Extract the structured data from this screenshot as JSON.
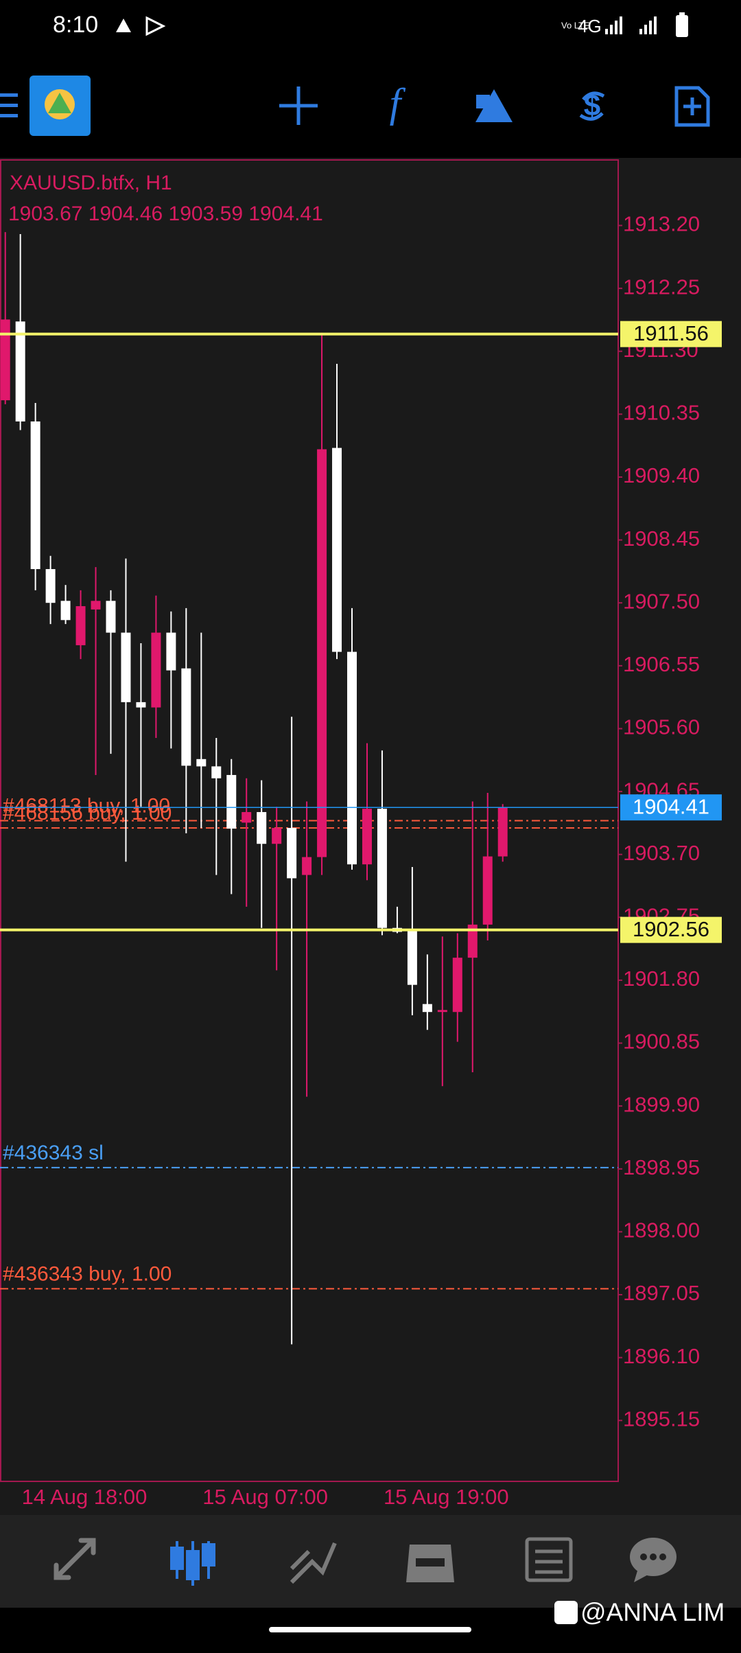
{
  "status_bar": {
    "time": "8:10",
    "network": "4G"
  },
  "chart_data": {
    "type": "candlestick",
    "title": "XAUUSD.btfx, H1",
    "subtitle": "1903.67 1904.46 1903.59 1904.41",
    "categories": [
      null,
      "14 Aug 18:00",
      null,
      null,
      null,
      null,
      null,
      null,
      null,
      null,
      null,
      null,
      null,
      "15 Aug 07:00",
      null,
      null,
      null,
      null,
      null,
      null,
      null,
      null,
      null,
      null,
      null,
      "15 Aug 19:00",
      null,
      null,
      null,
      null,
      null,
      null,
      null,
      null
    ],
    "open": [
      1910.56,
      1911.75,
      1910.24,
      1908.01,
      1907.53,
      1906.86,
      1907.4,
      1907.53,
      1907.05,
      1906.0,
      1905.92,
      1907.05,
      1906.51,
      1905.14,
      1905.03,
      1904.9,
      1904.18,
      1904.34,
      1903.86,
      1904.1,
      1903.39,
      1903.66,
      1909.84,
      1906.76,
      1903.55,
      1904.39,
      1902.59,
      1902.56,
      1901.44,
      1901.32,
      1901.32,
      1902.14,
      1902.64,
      1903.67
    ],
    "high": [
      1913.1,
      1913.07,
      1910.52,
      1908.21,
      1907.77,
      1907.69,
      1908.04,
      1907.69,
      1908.17,
      1906.89,
      1907.61,
      1907.37,
      1907.42,
      1907.05,
      1905.46,
      1905.14,
      1904.85,
      1904.82,
      1904.42,
      1905.78,
      1904.5,
      1911.58,
      1911.11,
      1907.42,
      1905.38,
      1905.27,
      1902.91,
      1903.51,
      1902.19,
      1902.46,
      1902.51,
      1904.5,
      1904.63,
      1904.46
    ],
    "low": [
      1910.5,
      1910.11,
      1907.69,
      1907.18,
      1907.18,
      1906.65,
      1904.9,
      1905.22,
      1903.59,
      1904.42,
      1905.46,
      1905.3,
      1904.02,
      1904.1,
      1903.39,
      1903.1,
      1902.91,
      1902.59,
      1901.95,
      1896.3,
      1900.04,
      1903.39,
      1906.65,
      1903.47,
      1903.31,
      1902.48,
      1902.51,
      1901.27,
      1901.05,
      1900.2,
      1900.87,
      1900.41,
      1902.4,
      1903.59
    ],
    "close": [
      1911.78,
      1910.24,
      1908.01,
      1907.5,
      1907.24,
      1907.45,
      1907.53,
      1907.05,
      1906.0,
      1905.92,
      1907.05,
      1906.48,
      1905.04,
      1905.03,
      1904.85,
      1904.09,
      1904.34,
      1903.86,
      1904.1,
      1903.34,
      1903.66,
      1909.82,
      1906.76,
      1903.55,
      1904.39,
      1902.59,
      1902.53,
      1901.73,
      1901.32,
      1901.35,
      1902.14,
      1902.64,
      1903.67,
      1904.41
    ],
    "up_color": "#e0186c",
    "down_color": "#ffffff",
    "ylim": [
      1894.23,
      1914.19
    ],
    "yticks": [
      {
        "value": 1913.2,
        "label": "1913.20"
      },
      1912.25,
      {
        "value": 1911.3,
        "label": "1911.30"
      },
      1910.35,
      {
        "value": 1909.4,
        "label": "1909.40"
      },
      1908.45,
      {
        "value": 1907.5,
        "label": "1907.50"
      },
      1906.55,
      {
        "value": 1905.6,
        "label": "1905.60"
      },
      1904.65,
      {
        "value": 1903.7,
        "label": "1903.70"
      },
      1902.75,
      {
        "value": 1901.8,
        "label": "1901.80"
      },
      1900.85,
      {
        "value": 1899.9,
        "label": "1899.90"
      },
      1898.95,
      {
        "value": 1898,
        "label": "1898.00"
      },
      1897.05,
      {
        "value": 1896.1,
        "label": "1896.10"
      },
      1895.15
    ],
    "price_lines": [
      {
        "value": 1911.56,
        "color": "#f4f46a"
      },
      {
        "value": 1904.41,
        "color": "#2196f3"
      },
      {
        "value": 1902.56,
        "color": "#f4f46a"
      }
    ],
    "orders": [
      {
        "label": "#468113 buy, 1.00",
        "value": 1904.21,
        "color": "#ff5a3c"
      },
      {
        "label": "#468156 buy, 1.00",
        "value": 1904.1,
        "color": "#ff5a3c"
      },
      {
        "label": "#436343 sl",
        "value": 1898.97,
        "color": "#4a9ff5"
      },
      {
        "label": "#436343 buy, 1.00",
        "value": 1897.14,
        "color": "#ff5a3c"
      }
    ]
  },
  "watermark": "@ANNA LIM"
}
